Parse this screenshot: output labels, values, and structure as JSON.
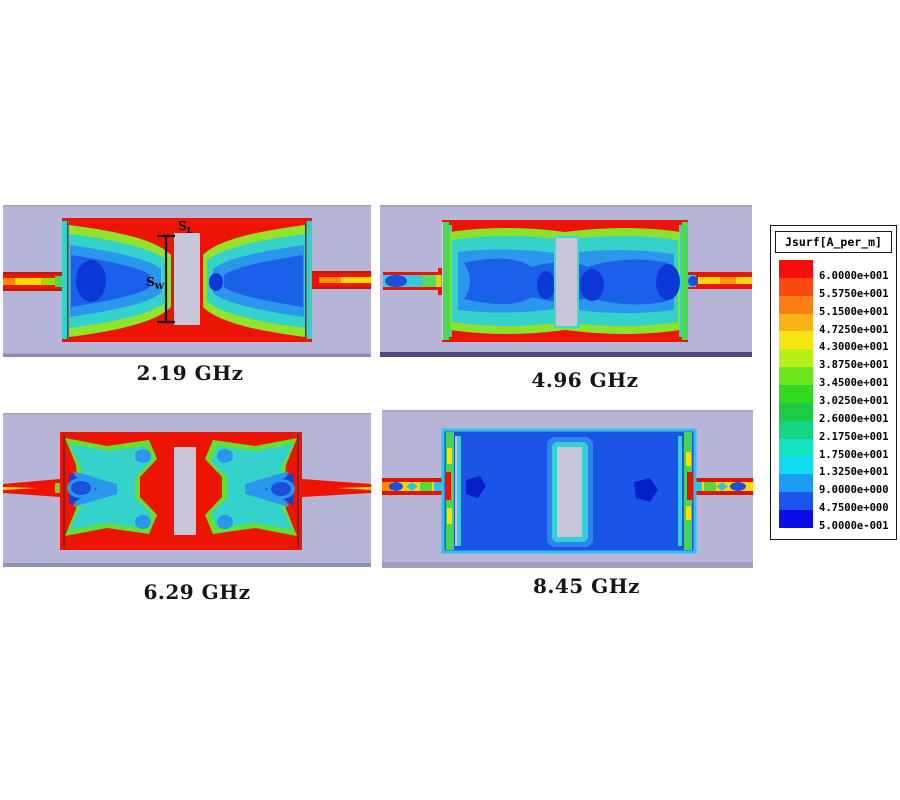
{
  "panels": [
    {
      "label": "2.19 GHz"
    },
    {
      "label": "4.96 GHz"
    },
    {
      "label": "6.29 GHz"
    },
    {
      "label": "8.45 GHz"
    }
  ],
  "annotations": {
    "slot_length": {
      "base": "S",
      "sub": "L"
    },
    "slot_width": {
      "base": "S",
      "sub": "W"
    }
  },
  "legend": {
    "title": "Jsurf[A_per_m]",
    "entries": [
      {
        "value": "6.0000e+001",
        "color": "#f80c0c"
      },
      {
        "value": "5.5750e+001",
        "color": "#fb4a11"
      },
      {
        "value": "5.1500e+001",
        "color": "#fb7e12"
      },
      {
        "value": "4.7250e+001",
        "color": "#fcb316"
      },
      {
        "value": "4.3000e+001",
        "color": "#f6e713"
      },
      {
        "value": "3.8750e+001",
        "color": "#b8ef19"
      },
      {
        "value": "3.4500e+001",
        "color": "#6ce71e"
      },
      {
        "value": "3.0250e+001",
        "color": "#33d921"
      },
      {
        "value": "2.6000e+001",
        "color": "#1ecb46"
      },
      {
        "value": "2.1750e+001",
        "color": "#14d584"
      },
      {
        "value": "1.7500e+001",
        "color": "#12e3c0"
      },
      {
        "value": "1.3250e+001",
        "color": "#10dcf0"
      },
      {
        "value": "9.0000e+000",
        "color": "#1e9bf5"
      },
      {
        "value": "4.7500e+000",
        "color": "#1a56ee"
      },
      {
        "value": "5.0000e-001",
        "color": "#0a0de8"
      }
    ]
  },
  "colors": {
    "substrate": "#b6b5d8",
    "slot": "#c8c7da",
    "high_current": "#ee1403",
    "low_current": "#0a0de8"
  },
  "chart_data": {
    "type": "heatmap",
    "quantity": "Jsurf",
    "unit": "A_per_m",
    "panels": [
      {
        "label": "2.19 GHz",
        "frequency_ghz": 2.19
      },
      {
        "label": "4.96 GHz",
        "frequency_ghz": 4.96
      },
      {
        "label": "6.29 GHz",
        "frequency_ghz": 6.29
      },
      {
        "label": "8.45 GHz",
        "frequency_ghz": 8.45
      }
    ],
    "colorbar": {
      "label": "Jsurf[A_per_m]",
      "min": 0.5,
      "max": 60,
      "tick_values": [
        60,
        55.75,
        51.5,
        47.25,
        43,
        38.75,
        34.5,
        30.25,
        26,
        21.75,
        17.5,
        13.25,
        9,
        4.75,
        0.5
      ],
      "tick_labels": [
        "6.0000e+001",
        "5.5750e+001",
        "5.1500e+001",
        "4.7250e+001",
        "4.3000e+001",
        "3.8750e+001",
        "3.4500e+001",
        "3.0250e+001",
        "2.6000e+001",
        "2.1750e+001",
        "1.7500e+001",
        "1.3250e+001",
        "9.0000e+000",
        "4.7500e+000",
        "5.0000e-001"
      ],
      "colors_top_to_bottom": [
        "#f80c0c",
        "#fb4a11",
        "#fb7e12",
        "#fcb316",
        "#f6e713",
        "#b8ef19",
        "#6ce71e",
        "#33d921",
        "#1ecb46",
        "#14d584",
        "#12e3c0",
        "#10dcf0",
        "#1e9bf5",
        "#1a56ee",
        "#0a0de8"
      ],
      "position": "right"
    },
    "annotations": [
      "SL",
      "SW"
    ]
  }
}
